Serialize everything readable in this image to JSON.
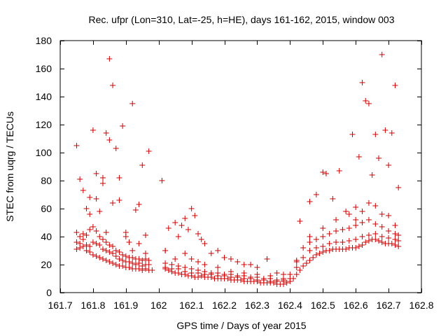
{
  "chart_data": {
    "type": "scatter",
    "title": "Rec. ufpr (Lon=310, Lat=-25, h=HE), days 161-162, 2015, window 003",
    "xlabel": "GPS time / Days of year 2015",
    "ylabel": "STEC from uqrg / TECUs",
    "xlim": [
      161.7,
      162.8
    ],
    "ylim": [
      0,
      180
    ],
    "xticks": [
      "161.7",
      "161.8",
      "161.9",
      "162",
      "162.1",
      "162.2",
      "162.3",
      "162.4",
      "162.5",
      "162.6",
      "162.7",
      "162.8"
    ],
    "yticks": [
      "0",
      "20",
      "40",
      "60",
      "80",
      "100",
      "120",
      "140",
      "160",
      "180"
    ],
    "grid": false,
    "marker": "+",
    "color": "#cc0000",
    "series": [
      {
        "x": [
          161.75,
          161.76,
          161.77,
          161.78,
          161.79,
          161.8,
          161.81,
          161.82,
          161.83,
          161.84,
          161.85,
          161.86,
          161.87,
          161.88,
          161.89,
          161.9,
          161.91,
          161.92,
          161.93,
          161.94,
          161.95,
          161.96,
          161.97,
          161.98,
          162.02,
          162.03,
          162.04,
          162.05,
          162.06,
          162.07,
          162.08,
          162.09,
          162.1,
          162.11,
          162.12,
          162.13,
          162.14,
          162.15,
          162.16,
          162.17,
          162.18,
          162.19,
          162.2,
          162.21,
          162.22,
          162.23,
          162.24,
          162.25,
          162.26,
          162.27,
          162.28,
          162.29,
          162.3,
          162.31,
          162.32,
          162.33,
          162.34,
          162.35,
          162.36,
          162.37,
          162.38,
          162.39,
          162.4,
          162.41,
          162.42,
          162.43,
          162.44,
          162.45,
          162.46,
          162.47,
          162.48,
          162.49,
          162.5,
          162.51,
          162.52,
          162.53,
          162.54,
          162.55,
          162.56,
          162.57,
          162.58,
          162.59,
          162.6,
          162.61,
          162.62,
          162.63,
          162.64,
          162.65,
          162.66,
          162.67,
          162.68,
          162.69,
          162.7,
          162.71,
          162.72,
          162.73
        ],
        "y": [
          31,
          32,
          33,
          30,
          29,
          27,
          26,
          25,
          24,
          23,
          22,
          21,
          20,
          19,
          19,
          18,
          18,
          17,
          17,
          17,
          16,
          17,
          16,
          16,
          17,
          16,
          15,
          14,
          14,
          13,
          13,
          12,
          12,
          11,
          11,
          12,
          11,
          11,
          11,
          10,
          10,
          10,
          10,
          10,
          9,
          9,
          9,
          9,
          8,
          8,
          8,
          8,
          8,
          7,
          7,
          7,
          7,
          7,
          6,
          6,
          6,
          7,
          8,
          10,
          13,
          16,
          19,
          21,
          23,
          25,
          27,
          28,
          29,
          30,
          30,
          31,
          31,
          31,
          31,
          31,
          32,
          32,
          32,
          33,
          34,
          36,
          37,
          38,
          38,
          37,
          36,
          35,
          35,
          35,
          34,
          33
        ]
      },
      {
        "x": [
          161.75,
          161.76,
          161.77,
          161.78,
          161.79,
          161.8,
          161.81,
          161.82,
          161.83,
          161.84,
          161.85,
          161.86,
          161.87,
          161.88,
          161.89,
          161.9,
          161.91,
          161.92,
          161.93,
          161.94,
          161.95,
          161.96,
          161.97,
          162.02,
          162.04,
          162.06,
          162.08,
          162.1,
          162.12,
          162.14,
          162.16,
          162.18,
          162.2,
          162.22,
          162.24,
          162.26,
          162.28,
          162.3,
          162.32,
          162.34,
          162.36,
          162.38,
          162.4,
          162.42,
          162.44,
          162.46,
          162.48,
          162.5,
          162.52,
          162.54,
          162.56,
          162.58,
          162.6,
          162.62,
          162.64,
          162.66,
          162.68,
          162.7,
          162.72,
          162.73
        ],
        "y": [
          36,
          35,
          38,
          34,
          33,
          36,
          35,
          34,
          31,
          30,
          29,
          28,
          26,
          24,
          23,
          22,
          22,
          21,
          20,
          21,
          19,
          20,
          20,
          18,
          17,
          17,
          15,
          14,
          14,
          13,
          13,
          12,
          12,
          11,
          11,
          10,
          10,
          9,
          9,
          8,
          8,
          8,
          10,
          18,
          25,
          30,
          32,
          33,
          35,
          36,
          36,
          37,
          38,
          40,
          41,
          42,
          40,
          39,
          38,
          37
        ]
      },
      {
        "x": [
          161.75,
          161.76,
          161.77,
          161.78,
          161.79,
          161.8,
          161.81,
          161.82,
          161.83,
          161.84,
          161.85,
          161.86,
          161.87,
          161.88,
          161.89,
          161.9,
          161.91,
          161.92,
          161.93,
          161.94,
          161.95,
          161.96,
          161.97,
          162.02,
          162.04,
          162.06,
          162.08,
          162.1,
          162.12,
          162.14,
          162.16,
          162.18,
          162.2,
          162.22,
          162.24,
          162.26,
          162.28,
          162.3,
          162.32,
          162.34,
          162.36,
          162.38,
          162.4,
          162.42,
          162.44,
          162.46,
          162.48,
          162.5,
          162.52,
          162.54,
          162.56,
          162.58,
          162.6,
          162.62,
          162.64,
          162.66,
          162.68,
          162.7,
          162.72,
          162.73
        ],
        "y": [
          43,
          40,
          42,
          41,
          45,
          47,
          44,
          40,
          38,
          36,
          34,
          33,
          30,
          29,
          27,
          26,
          25,
          25,
          24,
          24,
          23,
          24,
          23,
          21,
          20,
          19,
          18,
          17,
          16,
          15,
          14,
          14,
          13,
          13,
          12,
          12,
          11,
          11,
          10,
          10,
          9,
          9,
          13,
          22,
          32,
          36,
          38,
          40,
          42,
          44,
          45,
          46,
          48,
          50,
          52,
          49,
          47,
          44,
          42,
          41
        ]
      },
      {
        "x": [
          161.75,
          161.77,
          161.79,
          161.81,
          161.83,
          161.84,
          161.85,
          161.86,
          161.88,
          161.9,
          161.92,
          161.94,
          161.96,
          162.02,
          162.05,
          162.08,
          162.1,
          162.12,
          162.14,
          162.18,
          162.22,
          162.26,
          162.3,
          162.34,
          162.38,
          162.42,
          162.46,
          162.5,
          162.54,
          162.58,
          162.6,
          162.62,
          162.64,
          162.66,
          162.68,
          162.7,
          162.72
        ],
        "y": [
          105,
          73,
          68,
          67,
          78,
          114,
          109,
          64,
          66,
          40,
          30,
          35,
          28,
          30,
          50,
          28,
          24,
          22,
          20,
          18,
          15,
          14,
          13,
          12,
          10,
          23,
          40,
          46,
          52,
          56,
          61,
          58,
          64,
          62,
          56,
          55,
          48
        ]
      },
      {
        "x": [
          161.76,
          161.78,
          161.79,
          161.8,
          161.81,
          161.82,
          161.83,
          161.84,
          161.85,
          161.86,
          161.87,
          161.88,
          161.89,
          161.9,
          161.91,
          161.92,
          161.93,
          161.94,
          161.95,
          161.96,
          161.97,
          162.01,
          162.02,
          162.03,
          162.05,
          162.06,
          162.07,
          162.08,
          162.09,
          162.1,
          162.11,
          162.12,
          162.13,
          162.14,
          162.16,
          162.18,
          162.2,
          162.22,
          162.24,
          162.26,
          162.28,
          162.3,
          162.33,
          162.36,
          162.38,
          162.43,
          162.46,
          162.48,
          162.5,
          162.51,
          162.53,
          162.55,
          162.57,
          162.59,
          162.6,
          162.61,
          162.62,
          162.63,
          162.64,
          162.65,
          162.66,
          162.67,
          162.68,
          162.69,
          162.7,
          162.71,
          162.72,
          162.73
        ],
        "y": [
          81,
          60,
          56,
          116,
          85,
          58,
          82,
          43,
          167,
          148,
          103,
          82,
          119,
          43,
          36,
          135,
          59,
          63,
          91,
          41,
          101,
          80,
          30,
          46,
          24,
          40,
          48,
          53,
          45,
          60,
          55,
          42,
          38,
          35,
          28,
          30,
          25,
          24,
          22,
          20,
          20,
          18,
          24,
          14,
          13,
          51,
          65,
          70,
          86,
          85,
          67,
          87,
          58,
          113,
          52,
          97,
          150,
          137,
          135,
          84,
          113,
          96,
          170,
          116,
          91,
          114,
          148,
          75
        ]
      }
    ]
  }
}
